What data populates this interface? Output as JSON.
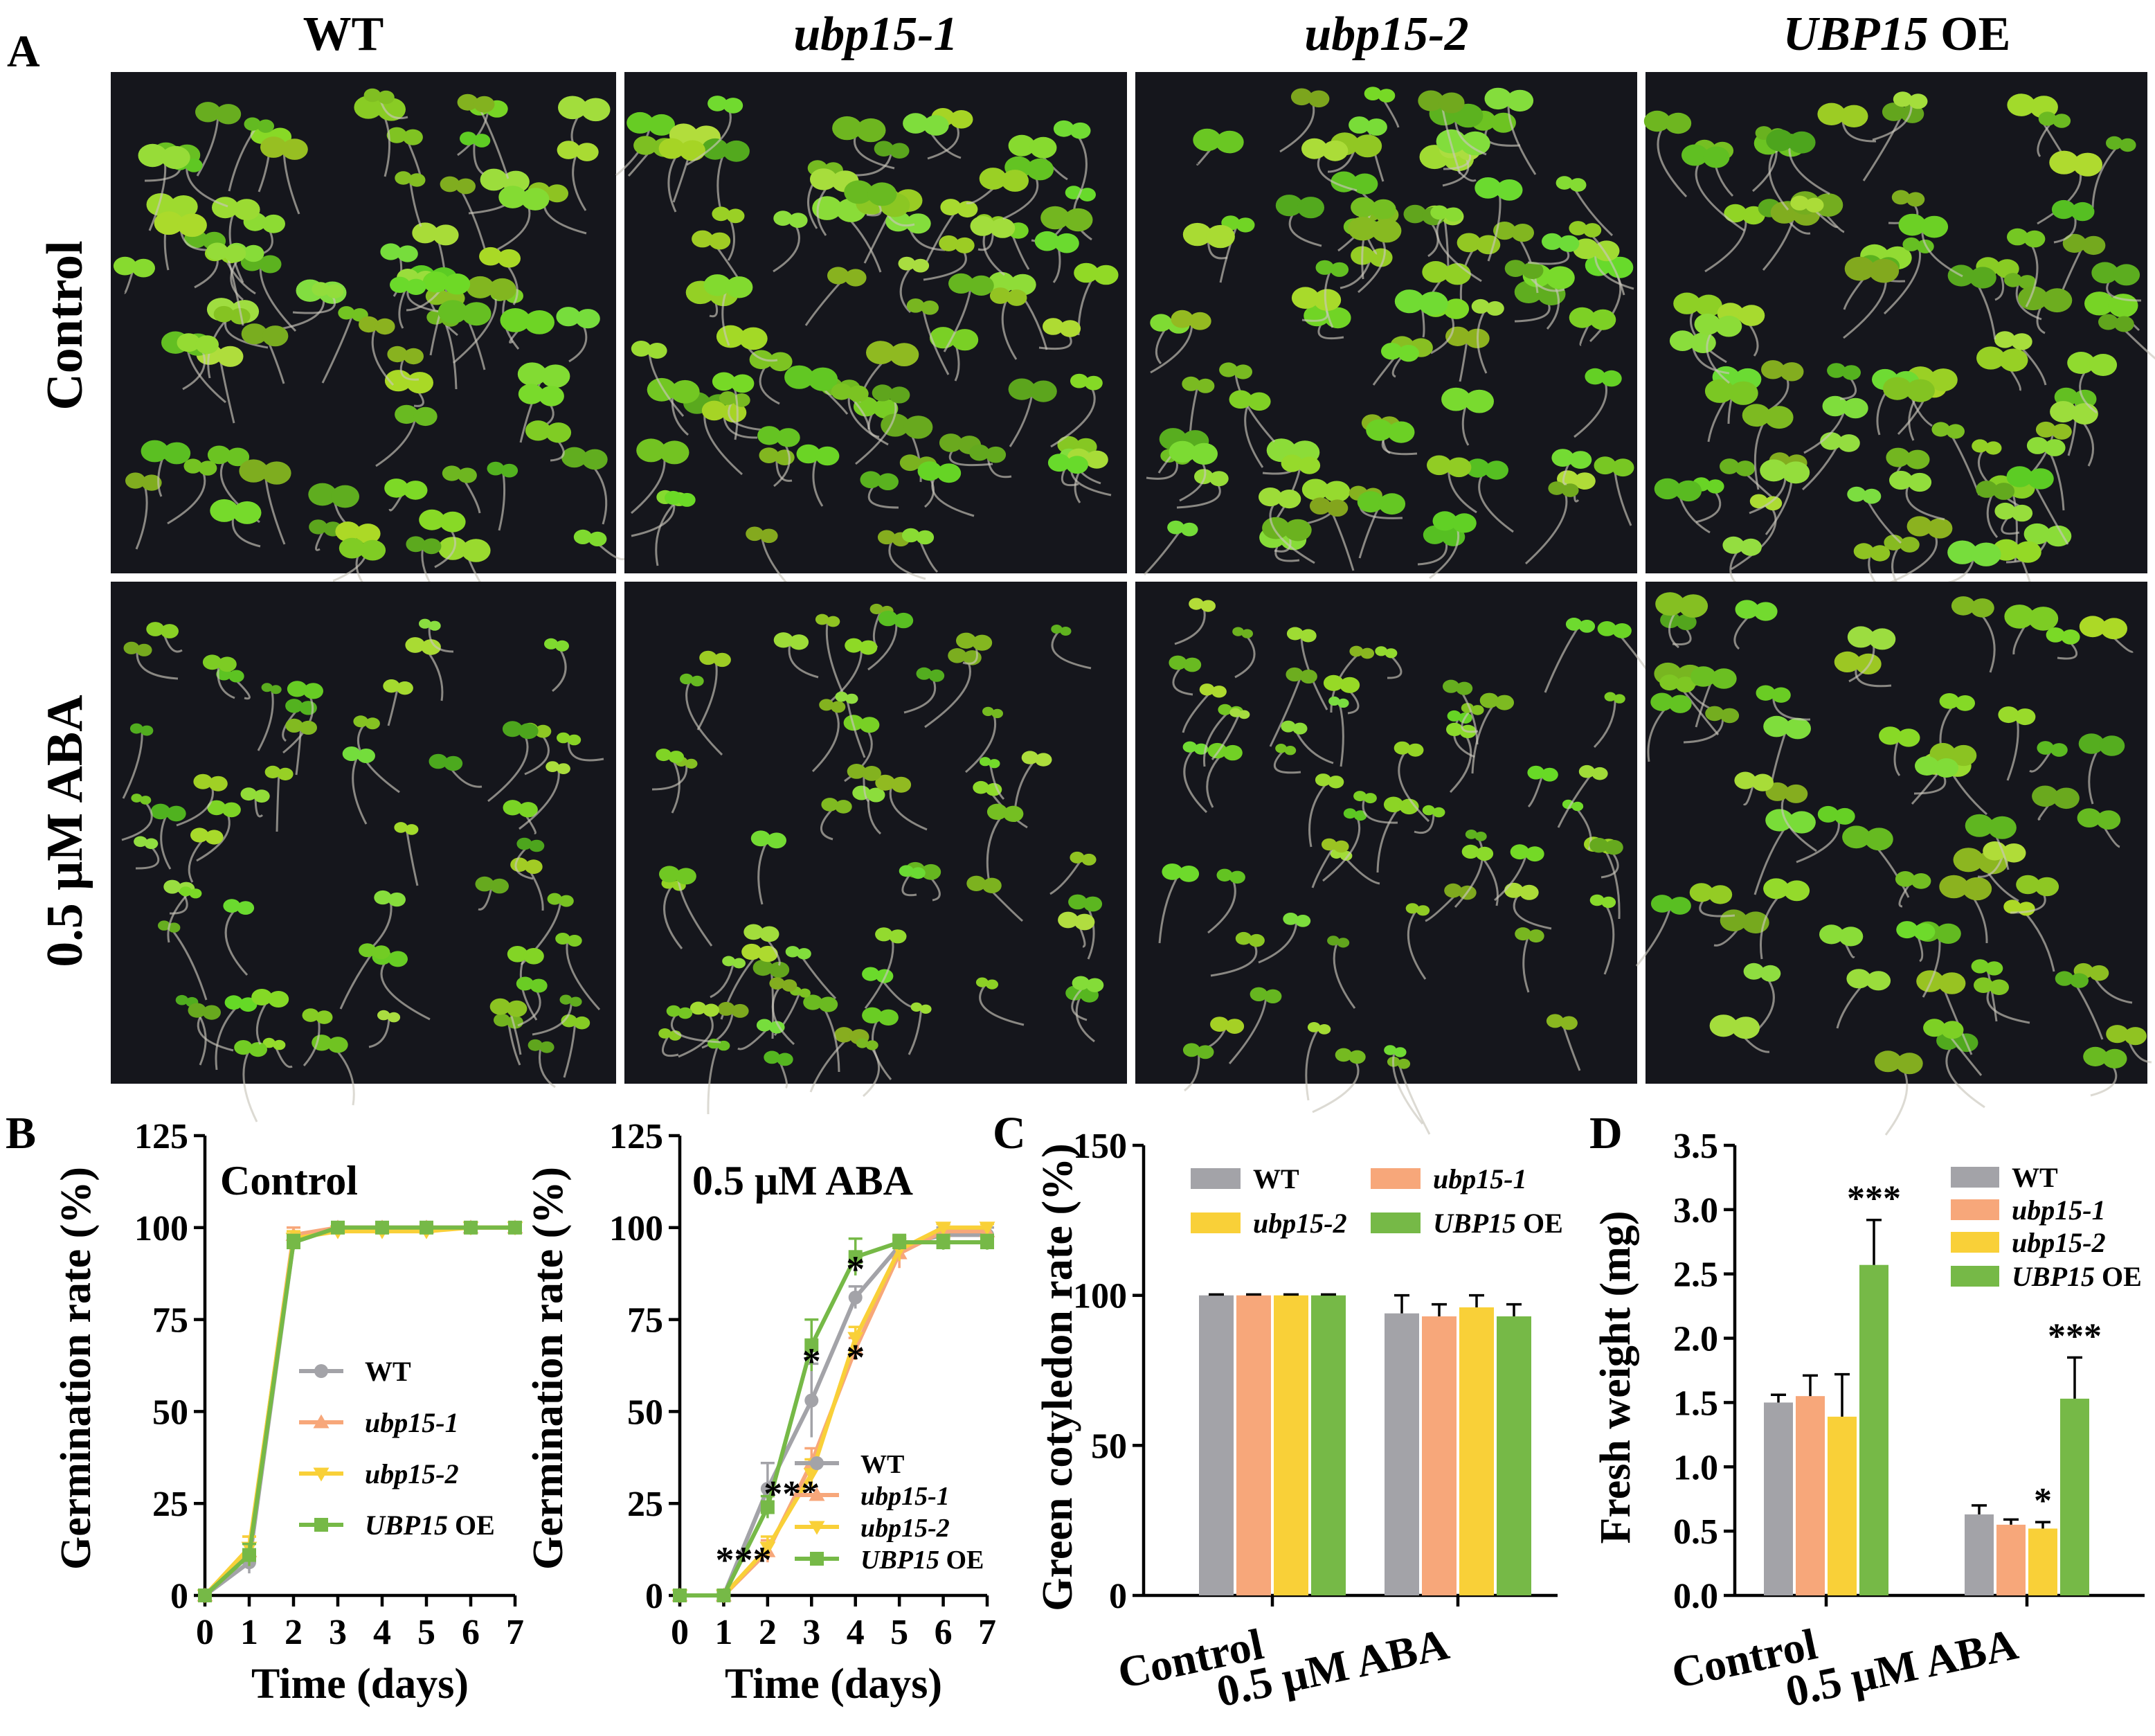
{
  "panel_letters": {
    "a": "A",
    "b": "B",
    "c": "C",
    "d": "D"
  },
  "panel_a": {
    "columns": [
      {
        "label": "WT",
        "italic": false
      },
      {
        "label": "ubp15-1",
        "italic": true
      },
      {
        "label": "ubp15-2",
        "italic": true
      },
      {
        "label": "UBP15",
        "suffix": " OE",
        "italic": true
      }
    ],
    "rows": [
      "Control",
      "0.5 μM ABA"
    ]
  },
  "colors": {
    "WT": "#a3a3a8",
    "ubp15-1": "#f7a77a",
    "ubp15-2": "#f9d038",
    "UBP15 OE": "#76b947"
  },
  "chart_data": [
    {
      "id": "B-control",
      "type": "line",
      "title": "Control",
      "xlabel": "Time (days)",
      "ylabel": "Germination rate (%)",
      "xlim": [
        0,
        7
      ],
      "ylim": [
        0,
        125
      ],
      "xticks": [
        "0",
        "1",
        "2",
        "3",
        "4",
        "5",
        "6",
        "7"
      ],
      "yticks": [
        "0",
        "25",
        "50",
        "75",
        "100",
        "125"
      ],
      "x": [
        0,
        1,
        2,
        3,
        4,
        5,
        6,
        7
      ],
      "legend": {
        "placement": "center-right"
      },
      "series": [
        {
          "name": "WT",
          "values": [
            0,
            9,
            96,
            100,
            100,
            100,
            100,
            100
          ],
          "err": [
            1,
            3,
            2,
            0.5,
            0.5,
            0.5,
            0.5,
            0.5
          ]
        },
        {
          "name": "ubp15-1",
          "values": [
            0,
            12,
            98,
            100,
            100,
            100,
            100,
            100
          ],
          "err": [
            1,
            4,
            2,
            0.5,
            0.5,
            0.5,
            0.5,
            0.5
          ]
        },
        {
          "name": "ubp15-2",
          "values": [
            0,
            13,
            97,
            99,
            99,
            99,
            100,
            100
          ],
          "err": [
            1,
            3,
            2,
            1,
            1,
            1,
            0.5,
            0.5
          ]
        },
        {
          "name": "UBP15 OE",
          "values": [
            0,
            11,
            96,
            100,
            100,
            100,
            100,
            100
          ],
          "err": [
            1,
            3,
            2,
            0.5,
            0.5,
            0.5,
            0.5,
            0.5
          ]
        }
      ]
    },
    {
      "id": "B-aba",
      "type": "line",
      "title": "0.5 μM ABA",
      "xlabel": "Time (days)",
      "ylabel": "Germination rate (%)",
      "xlim": [
        0,
        7
      ],
      "ylim": [
        0,
        125
      ],
      "xticks": [
        "0",
        "1",
        "2",
        "3",
        "4",
        "5",
        "6",
        "7"
      ],
      "yticks": [
        "0",
        "25",
        "50",
        "75",
        "100",
        "125"
      ],
      "x": [
        0,
        1,
        2,
        3,
        4,
        5,
        6,
        7
      ],
      "legend": {
        "placement": "center-right"
      },
      "series": [
        {
          "name": "WT",
          "values": [
            0,
            0,
            29,
            53,
            81,
            95,
            98,
            98
          ],
          "err": [
            0,
            0,
            7,
            10,
            3,
            2,
            2,
            2
          ]
        },
        {
          "name": "ubp15-1",
          "values": [
            0,
            0,
            12,
            36,
            67,
            93,
            99,
            99
          ],
          "err": [
            0,
            0,
            3,
            4,
            3,
            4,
            2,
            2
          ]
        },
        {
          "name": "ubp15-2",
          "values": [
            0,
            0,
            13,
            33,
            70,
            94,
            100,
            100
          ],
          "err": [
            0,
            0,
            3,
            4,
            3,
            3,
            1,
            1
          ]
        },
        {
          "name": "UBP15 OE",
          "values": [
            0,
            0,
            24,
            68,
            92,
            96,
            96,
            96
          ],
          "err": [
            0,
            0,
            3,
            7,
            5,
            2,
            2,
            2
          ]
        }
      ],
      "annotations": [
        {
          "text": "***",
          "x": 1.45,
          "y": 10
        },
        {
          "text": "***",
          "x": 2.55,
          "y": 28
        },
        {
          "text": "*",
          "x": 3.0,
          "y": 64
        },
        {
          "text": "*",
          "x": 4.0,
          "y": 89
        },
        {
          "text": "*",
          "x": 4.0,
          "y": 65
        }
      ]
    },
    {
      "id": "C",
      "type": "bar",
      "ylabel": "Green cotyledon rate (%)",
      "ylim": [
        0,
        150
      ],
      "yticks": [
        "0",
        "50",
        "100",
        "150"
      ],
      "categories": [
        "Control",
        "0.5 μM ABA"
      ],
      "legend": {
        "placement": "top",
        "columns": 2
      },
      "series": [
        {
          "name": "WT",
          "values": [
            100,
            94
          ],
          "err": [
            0.3,
            6
          ]
        },
        {
          "name": "ubp15-1",
          "values": [
            100,
            93
          ],
          "err": [
            0.3,
            4
          ]
        },
        {
          "name": "ubp15-2",
          "values": [
            100,
            96
          ],
          "err": [
            0.3,
            4
          ]
        },
        {
          "name": "UBP15 OE",
          "values": [
            100,
            93
          ],
          "err": [
            0.3,
            4
          ]
        }
      ]
    },
    {
      "id": "D",
      "type": "bar",
      "ylabel": "Fresh weight (mg)",
      "ylim": [
        0,
        3.5
      ],
      "yticks": [
        "0.0",
        "0.5",
        "1.0",
        "1.5",
        "2.0",
        "2.5",
        "3.0",
        "3.5"
      ],
      "categories": [
        "Control",
        "0.5 μM ABA"
      ],
      "legend": {
        "placement": "top-right"
      },
      "series": [
        {
          "name": "WT",
          "values": [
            1.5,
            0.63
          ],
          "err": [
            0.06,
            0.07
          ]
        },
        {
          "name": "ubp15-1",
          "values": [
            1.55,
            0.55
          ],
          "err": [
            0.16,
            0.04
          ]
        },
        {
          "name": "ubp15-2",
          "values": [
            1.39,
            0.52
          ],
          "err": [
            0.33,
            0.05
          ]
        },
        {
          "name": "UBP15 OE",
          "values": [
            2.57,
            1.53
          ],
          "err": [
            0.35,
            0.32
          ]
        }
      ],
      "annotations": [
        {
          "text": "***",
          "group": 0,
          "series": 3
        },
        {
          "text": "*",
          "group": 1,
          "series": 2
        },
        {
          "text": "***",
          "group": 1,
          "series": 3
        }
      ]
    }
  ]
}
